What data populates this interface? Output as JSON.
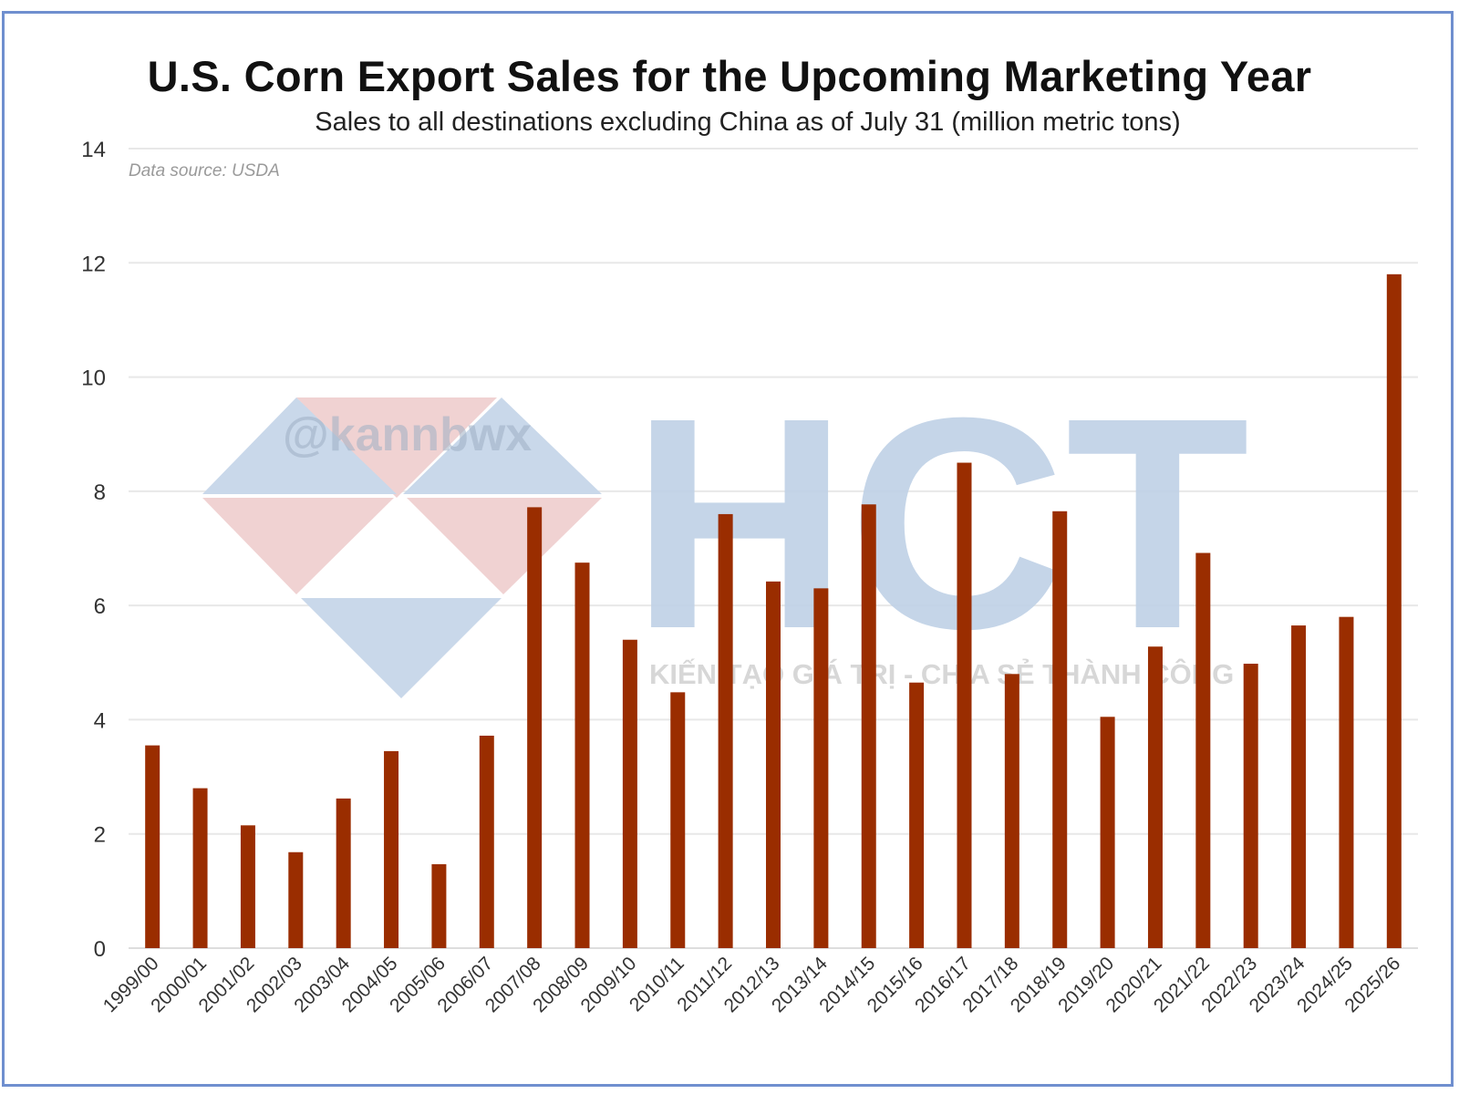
{
  "chart_data": {
    "type": "bar",
    "title": "U.S. Corn Export Sales for the Upcoming Marketing Year",
    "subtitle": "Sales to all destinations excluding China as of July 31 (million metric tons)",
    "source_note": "Data source: USDA",
    "categories": [
      "1999/00",
      "2000/01",
      "2001/02",
      "2002/03",
      "2003/04",
      "2004/05",
      "2005/06",
      "2006/07",
      "2007/08",
      "2008/09",
      "2009/10",
      "2010/11",
      "2011/12",
      "2012/13",
      "2013/14",
      "2014/15",
      "2015/16",
      "2016/17",
      "2017/18",
      "2018/19",
      "2019/20",
      "2020/21",
      "2021/22",
      "2022/23",
      "2023/24",
      "2024/25",
      "2025/26"
    ],
    "values": [
      3.55,
      2.8,
      2.15,
      1.68,
      2.62,
      3.45,
      1.47,
      3.72,
      7.72,
      6.75,
      5.4,
      4.48,
      7.6,
      6.42,
      6.3,
      7.77,
      4.65,
      8.5,
      4.8,
      7.65,
      4.05,
      5.28,
      6.92,
      4.98,
      5.65,
      5.8,
      11.8
    ],
    "ylim": [
      0,
      14
    ],
    "yticks": [
      0,
      2,
      4,
      6,
      8,
      10,
      12,
      14
    ],
    "grid": true,
    "bar_color": "#9a2d00"
  },
  "watermark": {
    "handle": "@kannbwx",
    "letters": "HCT",
    "tagline": "KIẾN TẠO GIÁ TRỊ - CHIA SẺ THÀNH CÔNG",
    "colors": {
      "blue": "#c9d8ea",
      "pink": "#f0d2d2"
    }
  }
}
